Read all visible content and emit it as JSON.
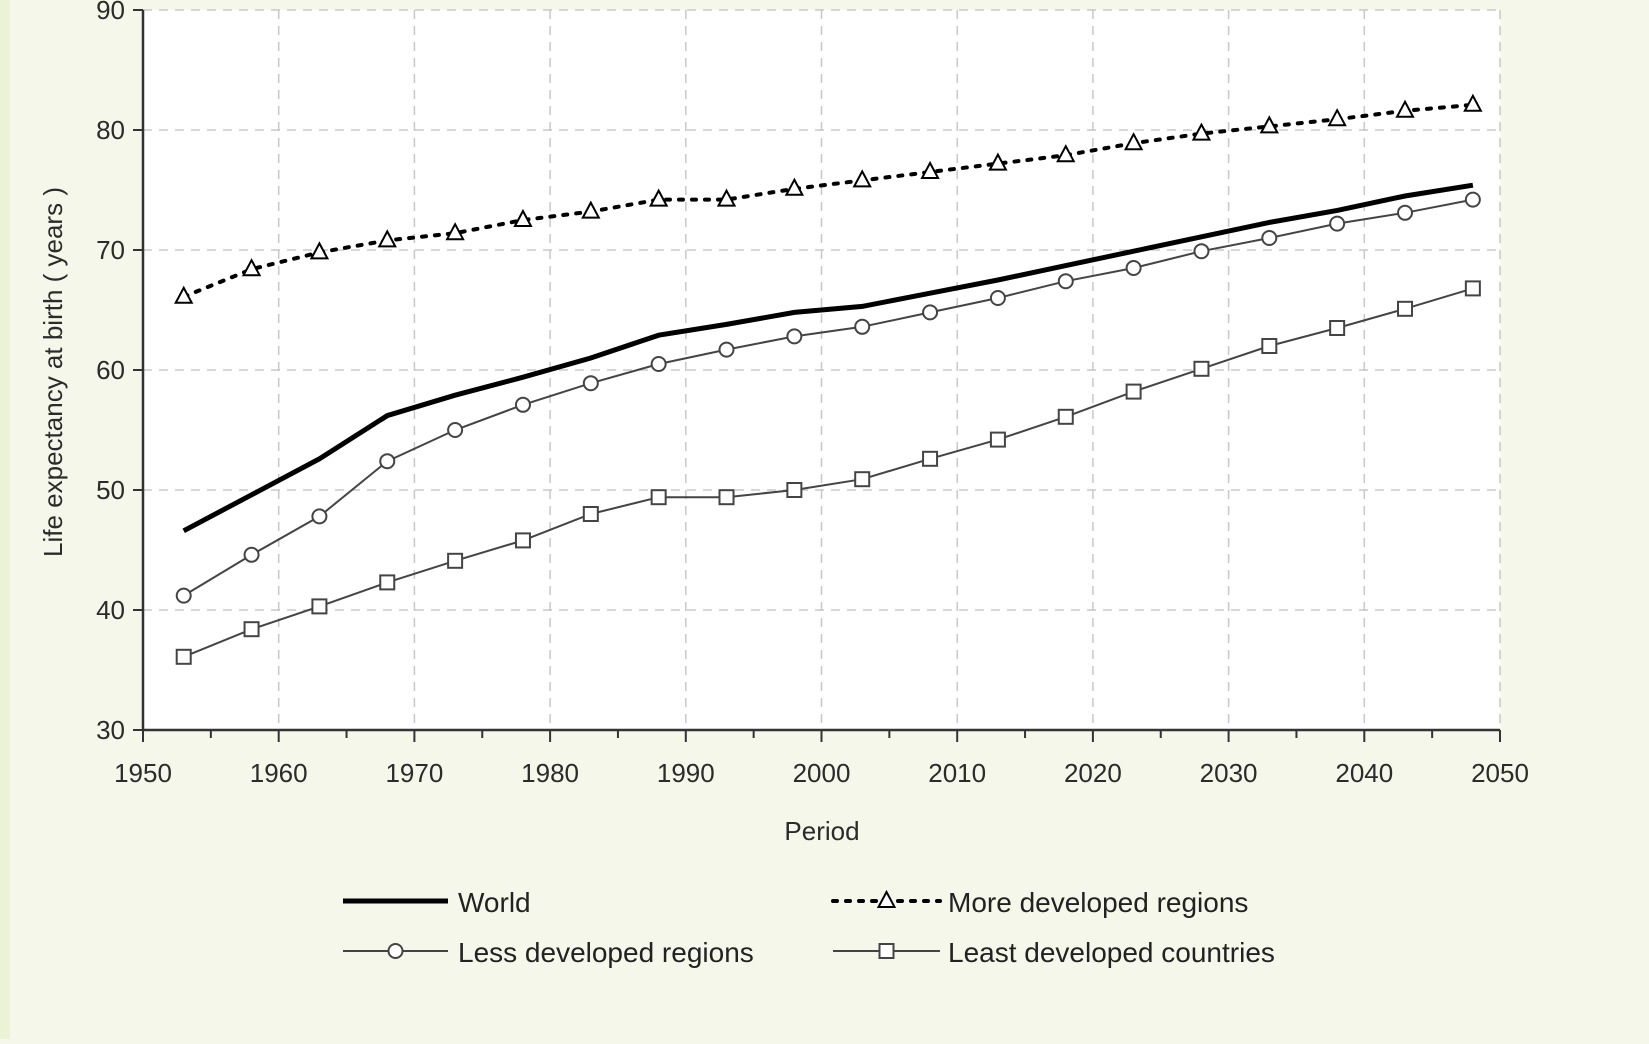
{
  "chart_data": {
    "type": "line",
    "xlabel": "Period",
    "ylabel": "Life expectancy at birth ( years )",
    "xlim": [
      1950,
      2050
    ],
    "ylim": [
      30,
      90
    ],
    "x_ticks": [
      "1950",
      "1960",
      "1970",
      "1980",
      "1990",
      "2000",
      "2010",
      "2020",
      "2030",
      "2040",
      "2050"
    ],
    "y_ticks": [
      "30",
      "40",
      "50",
      "60",
      "70",
      "80",
      "90"
    ],
    "grid": true,
    "legend_position": "bottom",
    "x": [
      1953,
      1958,
      1963,
      1968,
      1973,
      1978,
      1983,
      1988,
      1993,
      1998,
      2003,
      2008,
      2013,
      2018,
      2023,
      2028,
      2033,
      2038,
      2043,
      2048
    ],
    "series": [
      {
        "name": "World",
        "style": "thick-solid",
        "marker": "none",
        "color": "#000000",
        "values": [
          46.6,
          49.6,
          52.6,
          56.2,
          57.9,
          59.4,
          61.0,
          62.9,
          63.8,
          64.8,
          65.3,
          66.4,
          67.5,
          68.7,
          69.9,
          71.1,
          72.3,
          73.3,
          74.5,
          75.4
        ]
      },
      {
        "name": "More developed regions",
        "style": "dotted",
        "marker": "triangle",
        "color": "#000000",
        "values": [
          66.1,
          68.4,
          69.8,
          70.8,
          71.4,
          72.5,
          73.2,
          74.2,
          74.2,
          75.1,
          75.8,
          76.5,
          77.2,
          77.9,
          78.9,
          79.7,
          80.3,
          80.9,
          81.6,
          82.1
        ]
      },
      {
        "name": "Less developed regions",
        "style": "thin-solid",
        "marker": "circle",
        "color": "#444444",
        "values": [
          41.2,
          44.6,
          47.8,
          52.4,
          55.0,
          57.1,
          58.9,
          60.5,
          61.7,
          62.8,
          63.6,
          64.8,
          66.0,
          67.4,
          68.5,
          69.9,
          71.0,
          72.2,
          73.1,
          74.2
        ]
      },
      {
        "name": "Least developed countries",
        "style": "thin-solid",
        "marker": "square",
        "color": "#444444",
        "values": [
          36.1,
          38.4,
          40.3,
          42.3,
          44.1,
          45.8,
          48.0,
          49.4,
          49.4,
          50.0,
          50.9,
          52.6,
          54.2,
          56.1,
          58.2,
          60.1,
          62.0,
          63.5,
          65.1,
          66.8
        ]
      }
    ]
  }
}
